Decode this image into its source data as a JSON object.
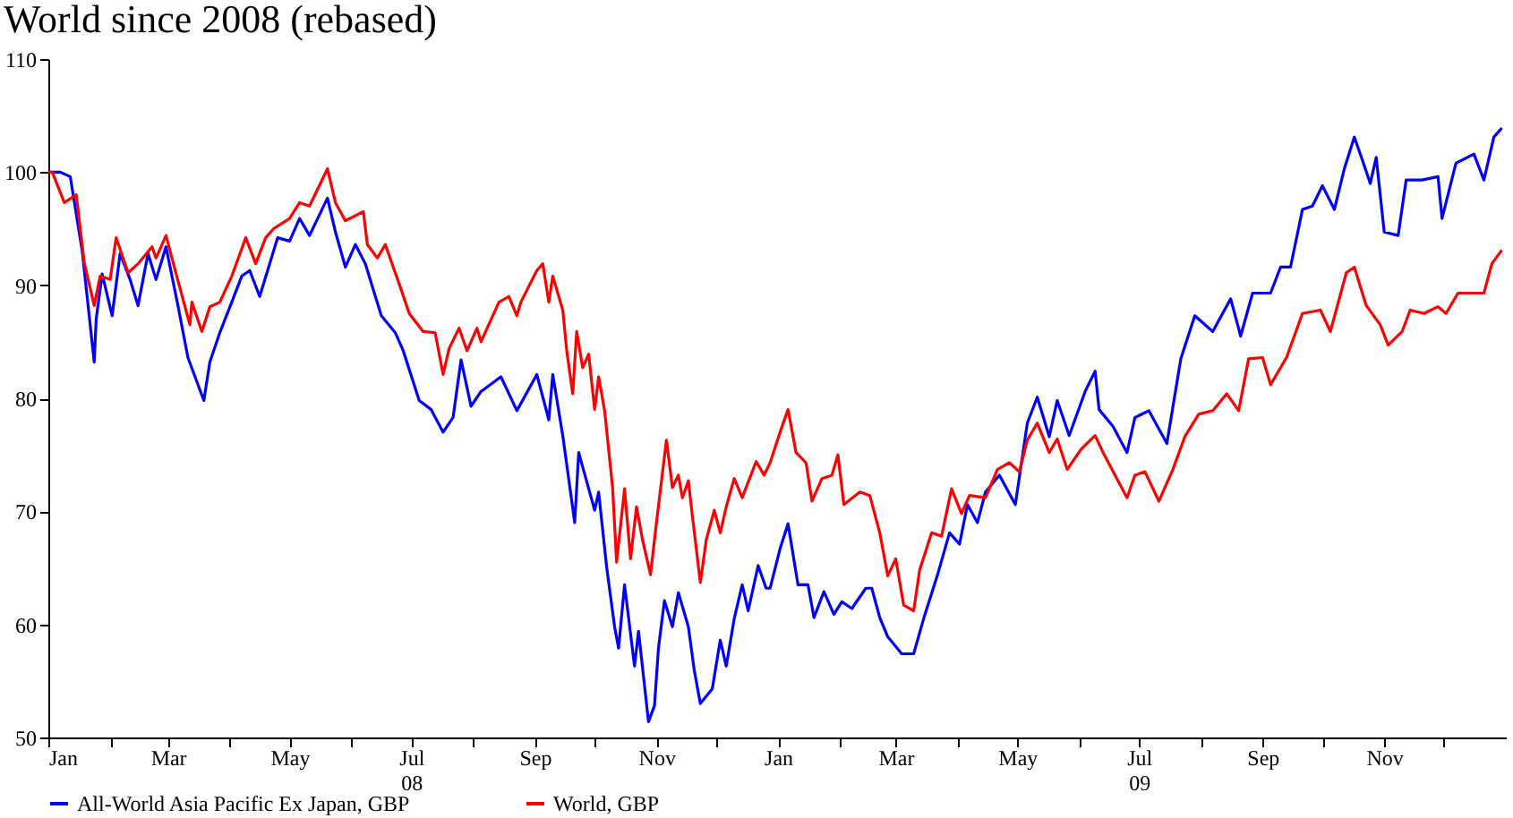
{
  "chart_data": {
    "type": "line",
    "title": "World since 2008 (rebased)",
    "xlim": [
      "2008-01-01",
      "2010-01-01"
    ],
    "xticks": [
      {
        "value": "2008-01-01",
        "label": "Jan"
      },
      {
        "value": "2008-02-01",
        "label": null
      },
      {
        "value": "2008-03-01",
        "label": "Mar"
      },
      {
        "value": "2008-04-01",
        "label": null
      },
      {
        "value": "2008-05-01",
        "label": "May"
      },
      {
        "value": "2008-06-01",
        "label": null
      },
      {
        "value": "2008-07-01",
        "label": "Jul\n08"
      },
      {
        "value": "2008-08-01",
        "label": null
      },
      {
        "value": "2008-09-01",
        "label": "Sep"
      },
      {
        "value": "2008-10-01",
        "label": null
      },
      {
        "value": "2008-11-01",
        "label": "Nov"
      },
      {
        "value": "2008-12-01",
        "label": null
      },
      {
        "value": "2009-01-01",
        "label": "Jan"
      },
      {
        "value": "2009-02-01",
        "label": null
      },
      {
        "value": "2009-03-01",
        "label": "Mar"
      },
      {
        "value": "2009-04-01",
        "label": null
      },
      {
        "value": "2009-05-01",
        "label": "May"
      },
      {
        "value": "2009-06-01",
        "label": null
      },
      {
        "value": "2009-07-01",
        "label": "Jul\n09"
      },
      {
        "value": "2009-08-01",
        "label": null
      },
      {
        "value": "2009-09-01",
        "label": "Sep"
      },
      {
        "value": "2009-10-01",
        "label": null
      },
      {
        "value": "2009-11-01",
        "label": "Nov"
      },
      {
        "value": "2009-12-01",
        "label": null
      }
    ],
    "ylim": [
      50,
      110
    ],
    "yticks": [
      50,
      60,
      70,
      80,
      90,
      100,
      110
    ],
    "grid": false,
    "legend": "bottom",
    "line_style": "solid",
    "marker": "none",
    "series": [
      {
        "name": "All-World Asia Pacific Ex Japan, GBP",
        "color": "#0000ff",
        "x": [
          "2008-01-01",
          "2008-01-03",
          "2008-01-07",
          "2008-01-12",
          "2008-01-18",
          "2008-01-24",
          "2008-01-25",
          "2008-01-28",
          "2008-02-02",
          "2008-02-06",
          "2008-02-11",
          "2008-02-15",
          "2008-02-20",
          "2008-02-24",
          "2008-02-29",
          "2008-03-06",
          "2008-03-11",
          "2008-03-19",
          "2008-03-22",
          "2008-03-27",
          "2008-04-02",
          "2008-04-07",
          "2008-04-11",
          "2008-04-16",
          "2008-04-21",
          "2008-04-25",
          "2008-05-01",
          "2008-05-06",
          "2008-05-11",
          "2008-05-20",
          "2008-05-24",
          "2008-05-29",
          "2008-06-03",
          "2008-06-08",
          "2008-06-16",
          "2008-06-23",
          "2008-06-27",
          "2008-07-05",
          "2008-07-11",
          "2008-07-17",
          "2008-07-22",
          "2008-07-26",
          "2008-07-31",
          "2008-08-05",
          "2008-08-15",
          "2008-08-23",
          "2008-09-02",
          "2008-09-08",
          "2008-09-10",
          "2008-09-15",
          "2008-09-21",
          "2008-09-23",
          "2008-10-01",
          "2008-10-03",
          "2008-10-07",
          "2008-10-11",
          "2008-10-13",
          "2008-10-16",
          "2008-10-21",
          "2008-10-23",
          "2008-10-28",
          "2008-10-31",
          "2008-11-02",
          "2008-11-05",
          "2008-11-09",
          "2008-11-12",
          "2008-11-17",
          "2008-11-20",
          "2008-11-23",
          "2008-11-29",
          "2008-12-03",
          "2008-12-06",
          "2008-12-10",
          "2008-12-14",
          "2008-12-17",
          "2008-12-22",
          "2008-12-26",
          "2008-12-28",
          "2009-01-02",
          "2009-01-06",
          "2009-01-11",
          "2009-01-16",
          "2009-01-19",
          "2009-01-24",
          "2009-01-29",
          "2009-02-02",
          "2009-02-07",
          "2009-02-14",
          "2009-02-17",
          "2009-02-21",
          "2009-02-25",
          "2009-03-04",
          "2009-03-10",
          "2009-03-15",
          "2009-03-22",
          "2009-03-28",
          "2009-04-02",
          "2009-04-06",
          "2009-04-11",
          "2009-04-15",
          "2009-04-22",
          "2009-04-30",
          "2009-05-06",
          "2009-05-11",
          "2009-05-17",
          "2009-05-21",
          "2009-05-27",
          "2009-06-04",
          "2009-06-09",
          "2009-06-11",
          "2009-06-18",
          "2009-06-25",
          "2009-06-29",
          "2009-07-06",
          "2009-07-15",
          "2009-07-22",
          "2009-07-29",
          "2009-08-07",
          "2009-08-16",
          "2009-08-21",
          "2009-08-27",
          "2009-09-05",
          "2009-09-10",
          "2009-09-15",
          "2009-09-21",
          "2009-09-26",
          "2009-10-01",
          "2009-10-07",
          "2009-10-12",
          "2009-10-17",
          "2009-10-21",
          "2009-10-25",
          "2009-10-28",
          "2009-11-01",
          "2009-11-08",
          "2009-11-12",
          "2009-11-20",
          "2009-11-28",
          "2009-11-30",
          "2009-12-07",
          "2009-12-16",
          "2009-12-21",
          "2009-12-26",
          "2009-12-30"
        ],
        "values": [
          100,
          100,
          100,
          99.6,
          93,
          83.2,
          87,
          91,
          87.3,
          92.8,
          90.5,
          88.2,
          92.8,
          90.5,
          93.4,
          88.2,
          83.6,
          79.8,
          83.2,
          85.8,
          88.5,
          90.8,
          91.3,
          89,
          91.9,
          94.2,
          93.9,
          95.9,
          94.4,
          97.7,
          94.7,
          91.6,
          93.6,
          91.9,
          87.3,
          85.8,
          84.2,
          79.8,
          79,
          77,
          78.3,
          83.4,
          79.3,
          80.6,
          81.9,
          78.9,
          82.1,
          78.1,
          82.1,
          76.7,
          69,
          75.2,
          70.1,
          71.7,
          65.1,
          59.8,
          57.9,
          63.5,
          56.3,
          59.4,
          51.4,
          52.8,
          57.9,
          62.1,
          59.8,
          62.8,
          59.8,
          55.9,
          53,
          54.3,
          58.6,
          56.3,
          60.5,
          63.5,
          61.2,
          65.2,
          63.2,
          63.2,
          66.7,
          68.9,
          63.5,
          63.5,
          60.6,
          62.9,
          60.9,
          62,
          61.4,
          63.2,
          63.2,
          60.6,
          58.9,
          57.4,
          57.4,
          60.5,
          64.4,
          68.1,
          67.1,
          70.6,
          69,
          71.7,
          73.2,
          70.6,
          77.8,
          80.1,
          76.6,
          79.8,
          76.7,
          80.6,
          82.4,
          79,
          77.5,
          75.2,
          78.3,
          78.9,
          76,
          83.5,
          87.3,
          85.9,
          88.8,
          85.5,
          89.3,
          89.3,
          91.6,
          91.6,
          96.7,
          97,
          98.8,
          96.7,
          100.3,
          103.1,
          101.1,
          99,
          101.3,
          94.7,
          94.4,
          99.3,
          99.3,
          99.6,
          95.9,
          100.8,
          101.6,
          99.3,
          103.1,
          103.9
        ]
      },
      {
        "name": "World, GBP",
        "color": "#ff0000",
        "x": [
          "2008-01-01",
          "2008-01-03",
          "2008-01-09",
          "2008-01-15",
          "2008-01-19",
          "2008-01-24",
          "2008-01-27",
          "2008-02-01",
          "2008-02-04",
          "2008-02-10",
          "2008-02-15",
          "2008-02-22",
          "2008-02-24",
          "2008-02-29",
          "2008-03-06",
          "2008-03-12",
          "2008-03-13",
          "2008-03-18",
          "2008-03-22",
          "2008-03-27",
          "2008-04-02",
          "2008-04-09",
          "2008-04-14",
          "2008-04-19",
          "2008-04-23",
          "2008-05-01",
          "2008-05-06",
          "2008-05-11",
          "2008-05-20",
          "2008-05-24",
          "2008-05-29",
          "2008-06-07",
          "2008-06-09",
          "2008-06-14",
          "2008-06-18",
          "2008-06-25",
          "2008-06-30",
          "2008-07-07",
          "2008-07-13",
          "2008-07-17",
          "2008-07-20",
          "2008-07-25",
          "2008-07-29",
          "2008-08-03",
          "2008-08-05",
          "2008-08-14",
          "2008-08-19",
          "2008-08-23",
          "2008-08-25",
          "2008-09-02",
          "2008-09-05",
          "2008-09-08",
          "2008-09-10",
          "2008-09-15",
          "2008-09-17",
          "2008-09-20",
          "2008-09-22",
          "2008-09-25",
          "2008-09-28",
          "2008-10-01",
          "2008-10-03",
          "2008-10-06",
          "2008-10-10",
          "2008-10-12",
          "2008-10-16",
          "2008-10-19",
          "2008-10-22",
          "2008-10-25",
          "2008-10-29",
          "2008-11-01",
          "2008-11-06",
          "2008-11-09",
          "2008-11-12",
          "2008-11-14",
          "2008-11-17",
          "2008-11-19",
          "2008-11-23",
          "2008-11-26",
          "2008-11-30",
          "2008-12-03",
          "2008-12-06",
          "2008-12-10",
          "2008-12-14",
          "2008-12-21",
          "2008-12-25",
          "2008-12-28",
          "2009-01-02",
          "2009-01-06",
          "2009-01-10",
          "2009-01-15",
          "2009-01-18",
          "2009-01-23",
          "2009-01-28",
          "2009-01-31",
          "2009-02-03",
          "2009-02-11",
          "2009-02-16",
          "2009-02-21",
          "2009-02-25",
          "2009-03-01",
          "2009-03-05",
          "2009-03-10",
          "2009-03-13",
          "2009-03-19",
          "2009-03-24",
          "2009-03-29",
          "2009-04-03",
          "2009-04-07",
          "2009-04-15",
          "2009-04-21",
          "2009-04-27",
          "2009-05-02",
          "2009-05-06",
          "2009-05-11",
          "2009-05-17",
          "2009-05-21",
          "2009-05-26",
          "2009-06-02",
          "2009-06-09",
          "2009-06-13",
          "2009-06-19",
          "2009-06-25",
          "2009-06-29",
          "2009-07-04",
          "2009-07-11",
          "2009-07-18",
          "2009-07-24",
          "2009-07-31",
          "2009-08-07",
          "2009-08-14",
          "2009-08-20",
          "2009-08-25",
          "2009-09-01",
          "2009-09-05",
          "2009-09-13",
          "2009-09-21",
          "2009-09-30",
          "2009-10-05",
          "2009-10-13",
          "2009-10-17",
          "2009-10-23",
          "2009-10-30",
          "2009-11-03",
          "2009-11-10",
          "2009-11-14",
          "2009-11-21",
          "2009-11-28",
          "2009-12-02",
          "2009-12-08",
          "2009-12-16",
          "2009-12-21",
          "2009-12-25",
          "2009-12-30"
        ],
        "values": [
          100,
          100,
          97.3,
          98,
          92,
          88.2,
          90.8,
          90.5,
          94.2,
          91.1,
          91.9,
          93.4,
          92.4,
          94.4,
          90.4,
          86.5,
          88.5,
          85.9,
          88.1,
          88.5,
          90.8,
          94.2,
          91.9,
          94.2,
          95,
          95.9,
          97.3,
          97,
          100.3,
          97.3,
          95.7,
          96.5,
          93.6,
          92.4,
          93.6,
          90.1,
          87.5,
          85.9,
          85.8,
          82.1,
          84.4,
          86.2,
          84.2,
          86.2,
          85,
          88.5,
          89,
          87.3,
          88.5,
          91.3,
          91.9,
          88.5,
          90.8,
          87.8,
          84.2,
          80.4,
          85.9,
          82.7,
          83.9,
          79,
          81.9,
          78.9,
          72.1,
          65.5,
          72,
          65.8,
          70.4,
          67.5,
          64.4,
          69,
          76.3,
          72.1,
          73.2,
          71.2,
          72.7,
          69.6,
          63.7,
          67.5,
          70.1,
          68.1,
          70.4,
          72.9,
          71.2,
          74.4,
          73.2,
          74.3,
          77,
          79,
          75.2,
          74.3,
          70.9,
          72.9,
          73.2,
          75,
          70.6,
          71.7,
          71.4,
          68.1,
          64.3,
          65.8,
          61.7,
          61.2,
          64.8,
          68.1,
          67.8,
          72,
          69.8,
          71.4,
          71.2,
          73.7,
          74.3,
          73.5,
          76.3,
          77.8,
          75.2,
          76.4,
          73.7,
          75.5,
          76.7,
          75.2,
          73.2,
          71.2,
          73.2,
          73.5,
          70.9,
          73.7,
          76.6,
          78.6,
          78.9,
          80.4,
          78.9,
          83.5,
          83.6,
          81.2,
          83.6,
          87.5,
          87.8,
          85.9,
          91.1,
          91.6,
          88.2,
          86.5,
          84.7,
          85.9,
          87.8,
          87.5,
          88.1,
          87.5,
          89.3,
          89.3,
          89.3,
          91.9,
          93.1
        ]
      }
    ]
  }
}
